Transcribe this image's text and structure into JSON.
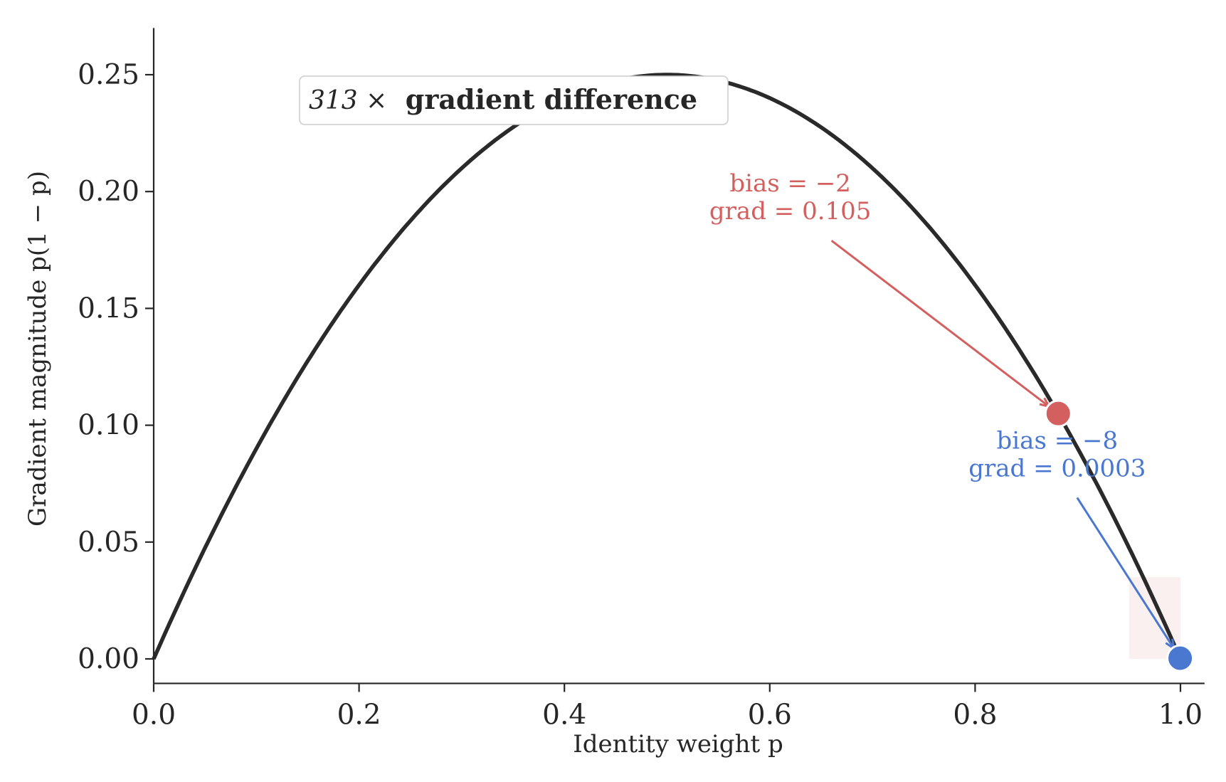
{
  "chart_data": {
    "type": "line",
    "title": "",
    "xlabel": "Identity weight p",
    "ylabel": "Gradient magnitude p(1 − p)",
    "xlim": [
      0,
      1.02
    ],
    "ylim": [
      -0.005,
      0.27
    ],
    "xticks": [
      0.0,
      0.2,
      0.4,
      0.6,
      0.8,
      1.0
    ],
    "xtick_labels": [
      "0.0",
      "0.2",
      "0.4",
      "0.6",
      "0.8",
      "1.0"
    ],
    "yticks": [
      0.0,
      0.05,
      0.1,
      0.15,
      0.2,
      0.25
    ],
    "ytick_labels": [
      "0.00",
      "0.05",
      "0.10",
      "0.15",
      "0.20",
      "0.25"
    ],
    "grid": false,
    "curve": {
      "function": "p(1-p)",
      "x_range": [
        0,
        1
      ],
      "color": "#2a2a2a"
    },
    "shaded_region": {
      "x": [
        0.95,
        1.0
      ],
      "y": [
        0,
        0.035
      ],
      "color": "#f7e6e6"
    },
    "points": [
      {
        "x": 0.881,
        "y": 0.105,
        "color": "#d45f5f",
        "label_lines": [
          "bias = −2",
          "grad = 0.105"
        ],
        "label_pos": [
          0.62,
          0.2
        ]
      },
      {
        "x": 0.9997,
        "y": 0.0003,
        "color": "#4a78d0",
        "label_lines": [
          "bias = −8",
          "grad = 0.0003"
        ],
        "label_pos": [
          0.88,
          0.09
        ]
      }
    ],
    "annotation_box": {
      "prefix": "313 ×",
      "text": "gradient difference"
    }
  }
}
